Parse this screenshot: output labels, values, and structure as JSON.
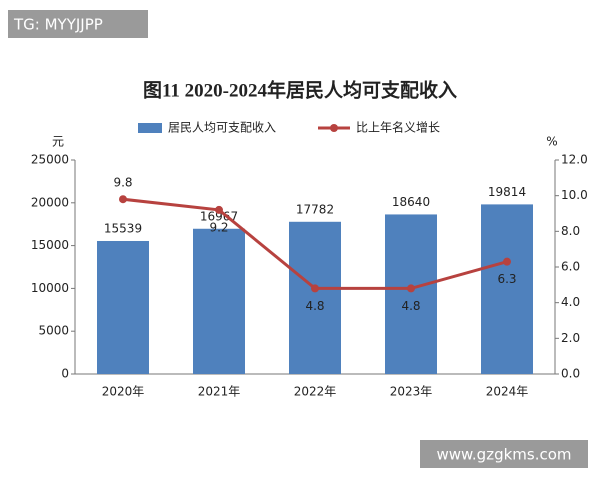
{
  "watermarks": [
    "TG: MYYJJPP",
    "www.gzgkms.com"
  ],
  "chart_data": {
    "type": "bar",
    "title": "图11  2020-2024年居民人均可支配收入",
    "categories": [
      "2020年",
      "2021年",
      "2022年",
      "2023年",
      "2024年"
    ],
    "series": [
      {
        "name": "居民人均可支配收入",
        "type": "bar",
        "color": "#4f81bd",
        "values": [
          15539,
          16967,
          17782,
          18640,
          19814
        ]
      },
      {
        "name": "比上年名义增长",
        "type": "line",
        "axis": "y2",
        "color": "#b7423f",
        "values": [
          9.8,
          9.2,
          4.8,
          4.8,
          6.3
        ]
      }
    ],
    "ylabel": "元",
    "y2label": "%",
    "ylim": [
      0,
      25000
    ],
    "yticks": [
      0,
      5000,
      10000,
      15000,
      20000,
      25000
    ],
    "y2lim": [
      0,
      12
    ],
    "y2ticks": [
      {
        "value": 0,
        "label": "0.0"
      },
      {
        "value": 2,
        "label": "2.0"
      },
      {
        "value": 4,
        "label": "4.0"
      },
      {
        "value": 6,
        "label": "6.0"
      },
      {
        "value": 8,
        "label": "8.0"
      },
      {
        "value": 10,
        "label": "10.0"
      },
      {
        "value": 12,
        "label": "12.0"
      }
    ],
    "grid": false
  }
}
